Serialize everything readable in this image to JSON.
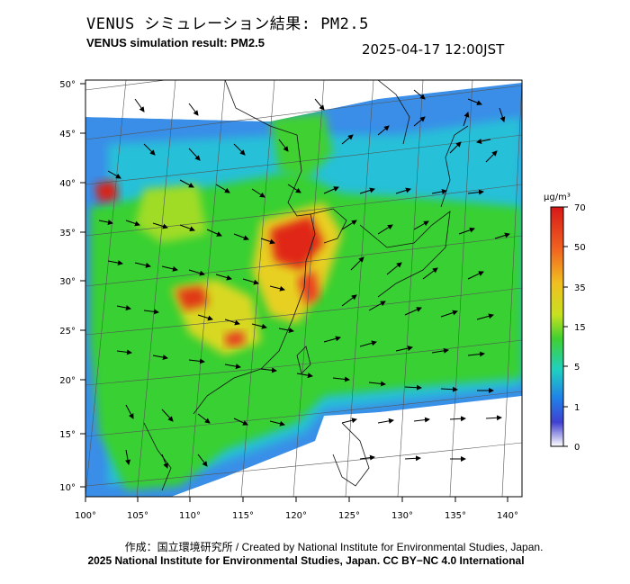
{
  "header": {
    "title_jp": "VENUS シミュレーション結果: PM2.5",
    "title_en": "VENUS simulation result: PM2.5",
    "timestamp": "2025-04-17 12:00JST"
  },
  "map": {
    "lon_ticks": [
      "100°",
      "105°",
      "110°",
      "115°",
      "120°",
      "125°",
      "130°",
      "135°",
      "140°"
    ],
    "lat_ticks": [
      "50°",
      "45°",
      "40°",
      "35°",
      "30°",
      "25°",
      "20°",
      "15°",
      "10°"
    ]
  },
  "legend": {
    "unit": "μg/m³",
    "levels": [
      "70",
      "50",
      "35",
      "15",
      "5",
      "1",
      "0"
    ],
    "colors": [
      "#e0201a",
      "#f08020",
      "#e8d020",
      "#40d030",
      "#20c8d8",
      "#2060e8",
      "#ffffff"
    ]
  },
  "footer": {
    "credit_line1": "作成：国立環境研究所 / Created by National Institute for Environmental Studies, Japan.",
    "credit_line2": "2025 National Institute for Environmental Studies, Japan. CC BY−NC 4.0 International"
  }
}
